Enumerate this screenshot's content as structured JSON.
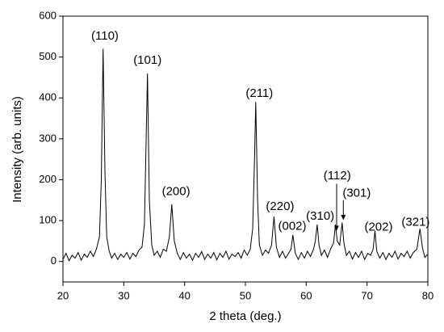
{
  "chart_data": {
    "type": "line",
    "x_label": "2 theta (deg.)",
    "y_label": "Intensity (arb. units)",
    "xlim": [
      20,
      80
    ],
    "ylim": [
      -50,
      600
    ],
    "xticks": [
      20,
      30,
      40,
      50,
      60,
      70,
      80
    ],
    "yticks": [
      0,
      100,
      200,
      300,
      400,
      500,
      600
    ],
    "color": "#000000",
    "grid": false,
    "x": [
      20,
      20.5,
      21,
      21.5,
      22,
      22.5,
      23,
      23.5,
      24,
      24.5,
      25,
      25.5,
      26,
      26.3,
      26.6,
      26.9,
      27.2,
      27.6,
      28,
      28.5,
      29,
      29.5,
      30,
      30.5,
      31,
      31.5,
      32,
      32.5,
      33,
      33.4,
      33.9,
      34.2,
      34.6,
      35,
      35.5,
      36,
      36.5,
      37,
      37.5,
      37.9,
      38.3,
      38.8,
      39.3,
      39.8,
      40.3,
      40.8,
      41.3,
      41.8,
      42.3,
      42.8,
      43.3,
      43.8,
      44.3,
      44.8,
      45.3,
      45.8,
      46.3,
      46.8,
      47.3,
      47.8,
      48.3,
      48.8,
      49.3,
      49.8,
      50.3,
      50.8,
      51.2,
      51.5,
      51.7,
      52,
      52.3,
      52.8,
      53.3,
      53.8,
      54.3,
      54.7,
      55.1,
      55.6,
      56.1,
      56.6,
      57.1,
      57.5,
      57.8,
      58.2,
      58.7,
      59.2,
      59.7,
      60.2,
      60.7,
      61.2,
      61.5,
      61.8,
      62.1,
      62.5,
      63,
      63.5,
      64,
      64.5,
      64.8,
      65.1,
      65.5,
      65.9,
      66.2,
      66.6,
      67.1,
      67.6,
      68.1,
      68.6,
      69.1,
      69.6,
      70.1,
      70.6,
      71,
      71.3,
      71.6,
      72.1,
      72.6,
      73.1,
      73.6,
      74.1,
      74.6,
      75.1,
      75.6,
      76.1,
      76.6,
      77.1,
      77.6,
      78.2,
      78.7,
      79.1,
      79.5,
      80
    ],
    "values": [
      5,
      20,
      2,
      15,
      8,
      22,
      3,
      18,
      10,
      25,
      12,
      30,
      60,
      200,
      520,
      220,
      60,
      25,
      8,
      20,
      5,
      18,
      10,
      22,
      6,
      20,
      12,
      28,
      35,
      90,
      460,
      150,
      40,
      15,
      25,
      10,
      30,
      25,
      60,
      140,
      50,
      20,
      5,
      22,
      8,
      18,
      3,
      20,
      10,
      24,
      5,
      18,
      8,
      22,
      4,
      20,
      10,
      25,
      6,
      18,
      12,
      22,
      8,
      28,
      15,
      30,
      80,
      250,
      390,
      150,
      40,
      15,
      28,
      20,
      40,
      110,
      35,
      10,
      25,
      8,
      20,
      30,
      65,
      20,
      5,
      22,
      8,
      25,
      12,
      30,
      50,
      90,
      40,
      15,
      28,
      10,
      30,
      45,
      90,
      50,
      40,
      95,
      45,
      15,
      25,
      6,
      22,
      10,
      25,
      5,
      20,
      15,
      30,
      75,
      25,
      8,
      22,
      5,
      20,
      10,
      25,
      6,
      20,
      12,
      25,
      8,
      22,
      30,
      80,
      35,
      10,
      18
    ],
    "annotations": [
      {
        "text": "(110)",
        "x": 26.9,
        "y": 551
      },
      {
        "text": "(101)",
        "x": 33.9,
        "y": 491
      },
      {
        "text": "(200)",
        "x": 38.6,
        "y": 170
      },
      {
        "text": "(211)",
        "x": 52.3,
        "y": 410
      },
      {
        "text": "(220)",
        "x": 55.7,
        "y": 134
      },
      {
        "text": "(002)",
        "x": 57.7,
        "y": 85
      },
      {
        "text": "(310)",
        "x": 62.3,
        "y": 110
      },
      {
        "text": "(112)",
        "x": 65.1,
        "y": 209,
        "arrow_x": 65.0,
        "arrow_from": 190,
        "arrow_to": 77
      },
      {
        "text": "(301)",
        "x": 68.3,
        "y": 166,
        "arrow_x": 66.1,
        "arrow_from": 150,
        "arrow_to": 103
      },
      {
        "text": "(202)",
        "x": 71.9,
        "y": 83
      },
      {
        "text": "(321)",
        "x": 78.0,
        "y": 95
      }
    ]
  }
}
